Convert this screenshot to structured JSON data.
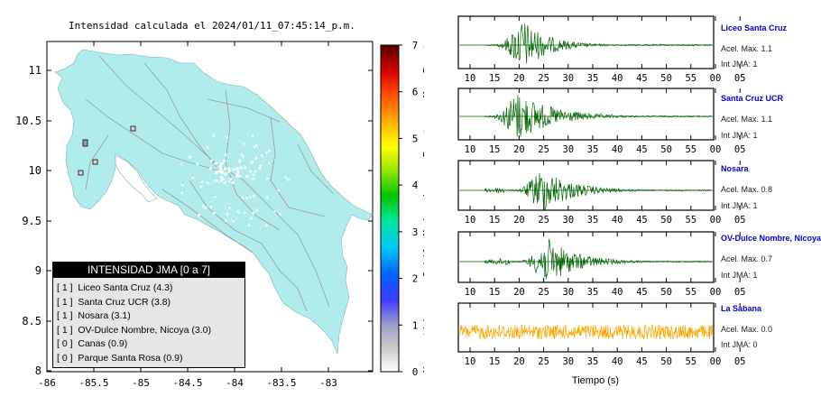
{
  "title": "Intensidad calculada el 2024/01/11_07:45:14_p.m.",
  "map": {
    "y_ticks": [
      "11",
      "10.5",
      "10",
      "9.5",
      "9",
      "8.5",
      "8"
    ],
    "x_ticks": [
      "-86",
      "-85.5",
      "-85",
      "-84.5",
      "-84",
      "-83.5",
      "-83"
    ],
    "land_color": "#b0ecec"
  },
  "colorbar": {
    "numbers": [
      "7",
      "6",
      "5",
      "4",
      "3",
      "2",
      "1",
      "0"
    ],
    "words": [
      "Muy Fuerte",
      "Fuerte",
      "Moderado",
      "Debil",
      "No sentido"
    ]
  },
  "legend": {
    "title": "INTENSIDAD JMA [0 a 7]",
    "items": [
      {
        "code": "[ 1 ]",
        "label": "Liceo Santa Cruz (4.3)"
      },
      {
        "code": "[ 1 ]",
        "label": "Santa Cruz UCR (3.8)"
      },
      {
        "code": "[ 1 ]",
        "label": "Nosara (3.1)"
      },
      {
        "code": "[ 1 ]",
        "label": "OV-Dulce Nombre, Nicoya (3.0)"
      },
      {
        "code": "[ 0 ]",
        "label": "Canas (0.9)"
      },
      {
        "code": "[ 0 ]",
        "label": "Parque Santa Rosa (0.9)"
      }
    ]
  },
  "waveforms": {
    "time_ticks": [
      "10",
      "15",
      "20",
      "25",
      "30",
      "35",
      "40",
      "45",
      "50",
      "55",
      "00",
      "05"
    ],
    "xlabel": "Tiempo (s)",
    "stations": [
      {
        "name": "Liceo Santa Cruz",
        "acel": "Acel. Max. 1.1",
        "jma": "Int JMA: 1",
        "color": "#006400"
      },
      {
        "name": "Santa Cruz UCR",
        "acel": "Acel. Max. 1.1",
        "jma": "Int JMA: 1",
        "color": "#006400"
      },
      {
        "name": "Nosara",
        "acel": "Acel. Max. 0.8",
        "jma": "Int JMA: 1",
        "color": "#006400"
      },
      {
        "name": "OV-Dulce Nombre, Nicoya",
        "acel": "Acel. Max. 0.7",
        "jma": "Int JMA: 1",
        "color": "#006400"
      },
      {
        "name": "La Sabana",
        "acel": "Acel. Max. 0.0",
        "jma": "Int JMA: 0",
        "color": "#ffa500"
      }
    ]
  }
}
